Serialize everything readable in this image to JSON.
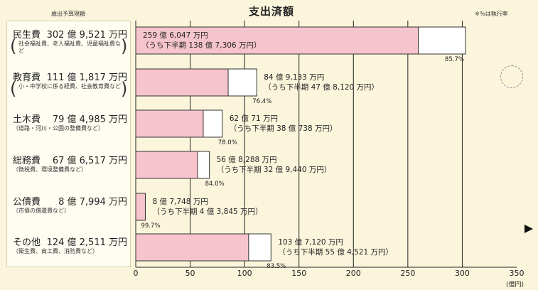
{
  "header": {
    "left_note": "歳出予算現額",
    "title": "支出済額",
    "right_note": "※％は執行率"
  },
  "categories": [
    {
      "name": "民生費",
      "amount": "302 億 9,521 万円",
      "note": "社会福祉費、老人福祉費、児童福祉費など",
      "note_paren": true
    },
    {
      "name": "教育費",
      "amount": "111 億 1,817 万円",
      "note": "小・中学校に係る経費、社会教育費など",
      "note_paren": true
    },
    {
      "name": "土木費",
      "amount": "79 億 4,985 万円",
      "note": "（道路・河川・公園の整備費など）",
      "note_paren": false
    },
    {
      "name": "総務費",
      "amount": "67 億 6,517 万円",
      "note": "（徴税費、環境整備費など）",
      "note_paren": false
    },
    {
      "name": "公債費",
      "amount": "8 億 7,994 万円",
      "note": "（市債の償還費など）",
      "note_paren": false
    },
    {
      "name": "その他",
      "amount": "124 億 2,511 万円",
      "note": "（衛生費、商工費、消防費など）",
      "note_paren": false
    }
  ],
  "chart_data": {
    "type": "bar",
    "orientation": "horizontal",
    "categories": [
      "民生費",
      "教育費",
      "土木費",
      "総務費",
      "公債費",
      "その他"
    ],
    "series": [
      {
        "values": [
          302.9521,
          111.1817,
          79.4985,
          67.6517,
          8.7994,
          124.2511
        ]
      },
      {
        "values": [
          259.6047,
          84.9133,
          62.0071,
          56.8288,
          8.7748,
          103.712
        ]
      }
    ],
    "spent_labels": [
      "259 億 6,047 万円",
      "84 億 9,133 万円",
      "62 億 71 万円",
      "56 億 8,288 万円",
      "8 億 7,748 万円",
      "103 億 7,120 万円"
    ],
    "second_half_labels": [
      "（うち下半期 138 億 7,306 万円）",
      "（うち下半期 47 億 8,120 万円）",
      "（うち下半期 38 億 738 万円）",
      "（うち下半期 32 億 9,440 万円）",
      "（うち下半期 4 億 3,845 万円）",
      "（うち下半期 55 億 4,521 万円）"
    ],
    "execution_rates": [
      "85.7%",
      "76.4%",
      "78.0%",
      "84.0%",
      "99.7%",
      "83.5%"
    ],
    "xlim": [
      0,
      350
    ],
    "xticks": [
      "0",
      "50",
      "100",
      "150",
      "200",
      "250",
      "300",
      "350"
    ],
    "xunit": "(億円)",
    "grid": true,
    "colors": {
      "spent": "#f6c4cc",
      "budget": "#ffffff",
      "grid": "#222222",
      "border": "#333333"
    }
  }
}
